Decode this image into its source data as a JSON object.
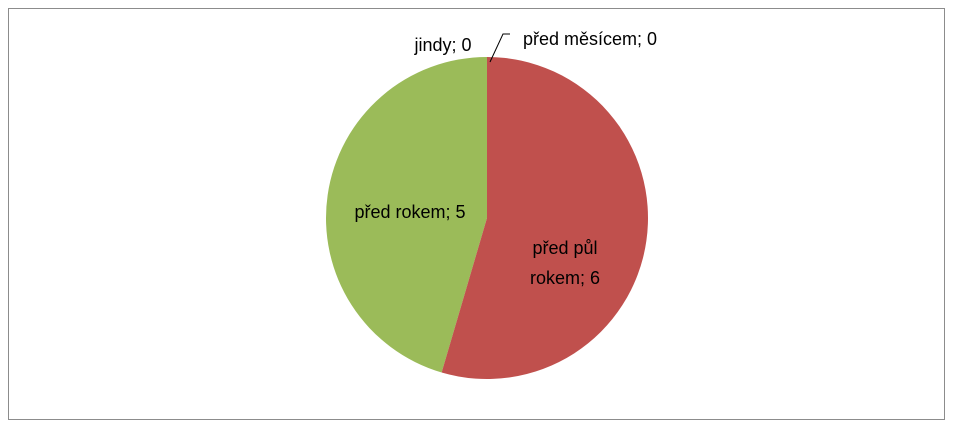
{
  "chart_data": {
    "type": "pie",
    "values": [
      0,
      6,
      5,
      0
    ],
    "value_labels": [
      "před měsícem; 0",
      "před půl rokem; 6",
      "před rokem; 5",
      "jindy; 0"
    ],
    "colors": [
      "#4f81bd",
      "#c0504d",
      "#9bbb59",
      "#8064a2"
    ]
  }
}
